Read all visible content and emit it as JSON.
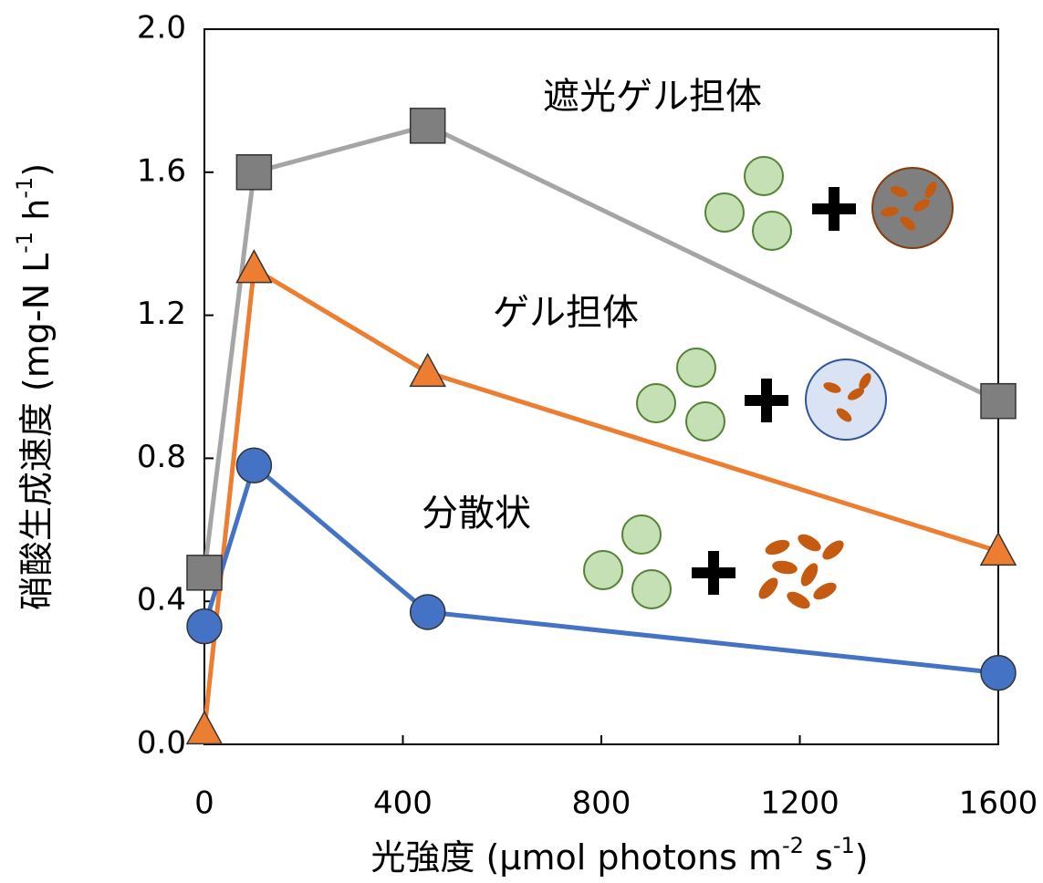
{
  "chart_data": {
    "type": "line",
    "x": [
      0,
      100,
      450,
      1600
    ],
    "series": [
      {
        "name": "遮光ゲル担体",
        "color": "#a5a5a5",
        "marker_color": "#7f7f7f",
        "marker": "square",
        "values": [
          0.48,
          1.6,
          1.73,
          0.96
        ]
      },
      {
        "name": "ゲル担体",
        "color": "#ed7d31",
        "marker_color": "#ed7d31",
        "marker": "triangle",
        "values": [
          0.04,
          1.33,
          1.04,
          0.54
        ]
      },
      {
        "name": "分散状",
        "color": "#4472c4",
        "marker_color": "#4472c4",
        "marker": "circle",
        "values": [
          0.33,
          0.78,
          0.37,
          0.2
        ]
      }
    ],
    "xlim": [
      0,
      1600
    ],
    "xticks": [
      0,
      400,
      800,
      1200,
      1600
    ],
    "ylim": [
      0,
      2.0
    ],
    "yticks": [
      {
        "value": 0,
        "label": "0.0"
      },
      0.4,
      0.8,
      1.2,
      1.6,
      {
        "value": 2.0,
        "label": "2.0"
      }
    ],
    "x_label": [
      "光強度 (μmol photons m",
      "-2",
      " s",
      "-1",
      ")"
    ],
    "y_label": [
      "硝酸生成速度 (mg-N L",
      "-1",
      " h",
      "-1",
      ")"
    ]
  }
}
